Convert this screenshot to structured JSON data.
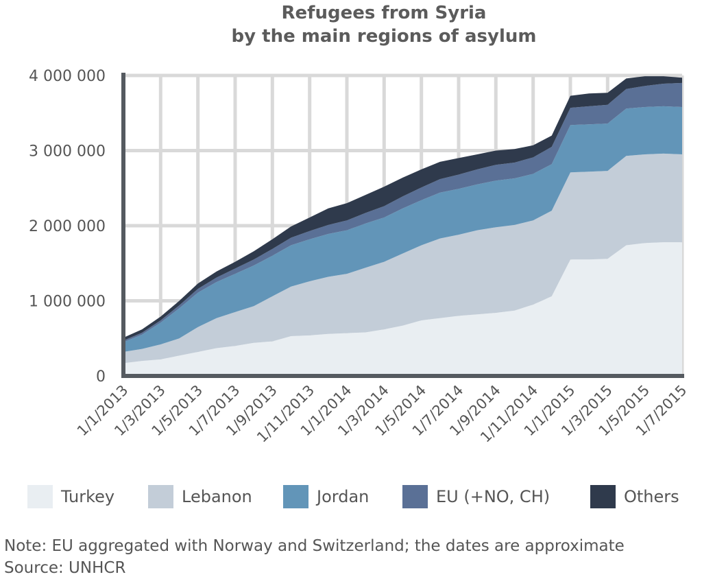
{
  "chart_data": {
    "type": "area",
    "stacked": true,
    "title_lines": [
      "Refugees from Syria",
      "by the main regions of asylum"
    ],
    "xlabel": "",
    "ylabel": "",
    "ylim": [
      0,
      4000000
    ],
    "yticks": [
      0,
      1000000,
      2000000,
      3000000,
      4000000
    ],
    "ytick_labels": [
      "0",
      "1 000 000",
      "2 000 000",
      "3 000 000",
      "4 000 000"
    ],
    "xtick_labels": [
      "1/1/2013",
      "1/3/2013",
      "1/5/2013",
      "1/7/2013",
      "1/9/2013",
      "1/11/2013",
      "1/1/2014",
      "1/3/2014",
      "1/5/2014",
      "1/7/2014",
      "1/9/2014",
      "1/11/2014",
      "1/1/2015",
      "1/3/2015",
      "1/5/2015",
      "1/7/2015"
    ],
    "x": [
      "1/1/2013",
      "1/2/2013",
      "1/3/2013",
      "1/4/2013",
      "1/5/2013",
      "1/6/2013",
      "1/7/2013",
      "1/8/2013",
      "1/9/2013",
      "1/10/2013",
      "1/11/2013",
      "1/12/2013",
      "1/1/2014",
      "1/2/2014",
      "1/3/2014",
      "1/4/2014",
      "1/5/2014",
      "1/6/2014",
      "1/7/2014",
      "1/8/2014",
      "1/9/2014",
      "1/10/2014",
      "1/11/2014",
      "1/12/2014",
      "1/1/2015",
      "1/2/2015",
      "1/3/2015",
      "1/4/2015",
      "1/5/2015",
      "1/6/2015",
      "1/7/2015"
    ],
    "grid": true,
    "legend_position": "bottom",
    "series": [
      {
        "name": "Turkey",
        "color": "#e9eef2",
        "values": [
          170000,
          200000,
          220000,
          270000,
          320000,
          370000,
          400000,
          440000,
          460000,
          530000,
          540000,
          560000,
          570000,
          580000,
          620000,
          670000,
          740000,
          770000,
          800000,
          820000,
          840000,
          870000,
          950000,
          1060000,
          1550000,
          1550000,
          1560000,
          1740000,
          1770000,
          1780000,
          1780000
        ]
      },
      {
        "name": "Lebanon",
        "color": "#c3cdd8",
        "values": [
          150000,
          160000,
          200000,
          230000,
          330000,
          400000,
          450000,
          490000,
          600000,
          660000,
          720000,
          760000,
          790000,
          860000,
          900000,
          960000,
          1000000,
          1060000,
          1080000,
          1120000,
          1140000,
          1140000,
          1120000,
          1140000,
          1160000,
          1170000,
          1170000,
          1190000,
          1180000,
          1180000,
          1170000
        ]
      },
      {
        "name": "Jordan",
        "color": "#6295b8",
        "values": [
          130000,
          190000,
          290000,
          400000,
          460000,
          480000,
          510000,
          540000,
          540000,
          550000,
          560000,
          570000,
          580000,
          590000,
          590000,
          600000,
          600000,
          610000,
          610000,
          610000,
          620000,
          620000,
          620000,
          620000,
          630000,
          630000,
          630000,
          630000,
          630000,
          630000,
          630000
        ]
      },
      {
        "name": "EU (+NO, CH)",
        "color": "#5a7096",
        "values": [
          20000,
          25000,
          30000,
          40000,
          50000,
          60000,
          70000,
          80000,
          90000,
          100000,
          110000,
          120000,
          130000,
          140000,
          150000,
          160000,
          170000,
          180000,
          190000,
          200000,
          210000,
          210000,
          220000,
          230000,
          230000,
          240000,
          250000,
          260000,
          280000,
          300000,
          320000
        ]
      },
      {
        "name": "Others",
        "color": "#2f3a4c",
        "values": [
          40000,
          45000,
          50000,
          60000,
          70000,
          80000,
          90000,
          110000,
          130000,
          150000,
          180000,
          220000,
          230000,
          240000,
          260000,
          250000,
          240000,
          230000,
          220000,
          200000,
          190000,
          180000,
          160000,
          150000,
          160000,
          170000,
          160000,
          140000,
          130000,
          100000,
          70000
        ]
      }
    ]
  },
  "notes": {
    "line1": "Note: EU aggregated with Norway and Switzerland; the dates are approximate",
    "line2": "Source: UNHCR"
  }
}
